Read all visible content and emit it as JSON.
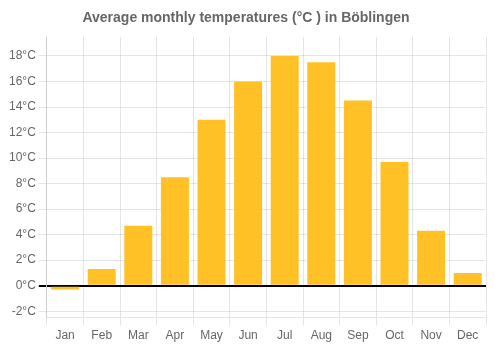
{
  "chart_data": {
    "type": "bar",
    "title": "Average monthly temperatures (°C ) in Böblingen",
    "categories": [
      "Jan",
      "Feb",
      "Mar",
      "Apr",
      "May",
      "Jun",
      "Jul",
      "Aug",
      "Sep",
      "Oct",
      "Nov",
      "Dec"
    ],
    "values": [
      -0.3,
      1.3,
      4.7,
      8.5,
      13.0,
      16.0,
      18.0,
      17.5,
      14.5,
      9.7,
      4.3,
      1.0
    ],
    "color": "#FFC125",
    "ylim": [
      -2.5,
      19.5
    ],
    "yticks": [
      {
        "value": -2,
        "label": "-2°C"
      },
      {
        "value": 0,
        "label": "0°C"
      },
      {
        "value": 2,
        "label": "2°C"
      },
      {
        "value": 4,
        "label": "4°C"
      },
      {
        "value": 6,
        "label": "6°C"
      },
      {
        "value": 8,
        "label": "8°C"
      },
      {
        "value": 10,
        "label": "10°C"
      },
      {
        "value": 12,
        "label": "12°C"
      },
      {
        "value": 14,
        "label": "14°C"
      },
      {
        "value": 16,
        "label": "16°C"
      },
      {
        "value": 18,
        "label": "18°C"
      }
    ],
    "grid": true
  }
}
